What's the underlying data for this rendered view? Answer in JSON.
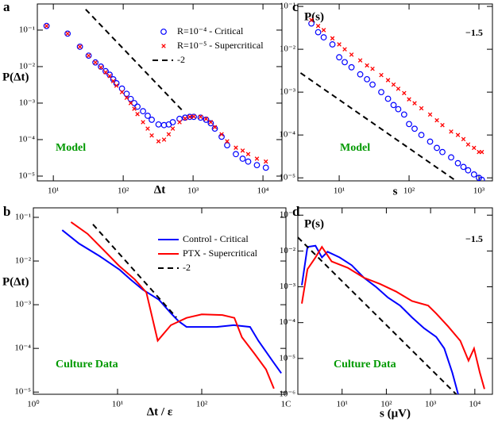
{
  "chart_data": [
    {
      "type": "scatter",
      "panel": "a",
      "xlabel": "Δt",
      "ylabel": "P(Δt)",
      "xscale": "log",
      "yscale": "log",
      "xlim": [
        5.9,
        18700
      ],
      "ylim": [
        7.4e-06,
        0.52
      ],
      "xticks": [
        {
          "value": 10,
          "label": "10¹"
        },
        {
          "value": 100,
          "label": "10²"
        },
        {
          "value": 1000,
          "label": "10³"
        },
        {
          "value": 10000,
          "label": "10⁴"
        }
      ],
      "yticks": [
        {
          "value": 1e-05,
          "label": "10⁻⁵"
        },
        {
          "value": 0.0001,
          "label": "10⁻⁴"
        },
        {
          "value": 0.001,
          "label": "10⁻³"
        },
        {
          "value": 0.01,
          "label": "10⁻²"
        },
        {
          "value": 0.1,
          "label": "10⁻¹"
        }
      ],
      "legend": "upper right",
      "annotations": [
        "Model"
      ],
      "series": [
        {
          "name": "R=10⁻⁴ - Critical",
          "color": "#0000ff",
          "style": "circle",
          "x": [
            8,
            16,
            24,
            32,
            40,
            48,
            56,
            64,
            72,
            80,
            96,
            112,
            128,
            144,
            160,
            192,
            224,
            256,
            320,
            384,
            448,
            512,
            640,
            768,
            896,
            1024,
            1280,
            1536,
            1792,
            2048,
            2560,
            3072,
            4096,
            5120,
            6144,
            8192,
            11000
          ],
          "values": [
            0.13,
            0.08,
            0.035,
            0.02,
            0.013,
            0.01,
            0.0075,
            0.006,
            0.0045,
            0.0035,
            0.0025,
            0.0018,
            0.0013,
            0.001,
            0.0008,
            0.0006,
            0.00045,
            0.00035,
            0.00026,
            0.00025,
            0.00026,
            0.0003,
            0.00037,
            0.0004,
            0.00042,
            0.00042,
            0.0004,
            0.00035,
            0.00028,
            0.0002,
            0.00012,
            7e-05,
            4e-05,
            3e-05,
            2.5e-05,
            2e-05,
            1.7e-05
          ]
        },
        {
          "name": "R=10⁻⁵ - Supercritical",
          "color": "#ff0000",
          "style": "cross",
          "x": [
            8,
            16,
            24,
            32,
            40,
            48,
            56,
            64,
            72,
            80,
            96,
            112,
            128,
            144,
            160,
            192,
            224,
            256,
            320,
            384,
            448,
            512,
            640,
            768,
            896,
            1024,
            1280,
            1536,
            1792,
            2048,
            2560,
            3072,
            4096,
            5120,
            6144,
            8192,
            11000
          ],
          "values": [
            0.13,
            0.08,
            0.035,
            0.02,
            0.013,
            0.0095,
            0.007,
            0.0055,
            0.004,
            0.003,
            0.002,
            0.0014,
            0.001,
            0.0007,
            0.0005,
            0.0003,
            0.0002,
            0.00013,
            9e-05,
            0.0001,
            0.00014,
            0.0002,
            0.0003,
            0.00038,
            0.00042,
            0.00043,
            0.00042,
            0.00037,
            0.0003,
            0.00022,
            0.00014,
            9e-05,
            6e-05,
            5e-05,
            4e-05,
            3e-05,
            2.5e-05
          ]
        },
        {
          "name": "-2",
          "color": "#000000",
          "style": "dashed",
          "x": [
            29,
            750
          ],
          "values": [
            0.37,
            0.00055
          ]
        }
      ]
    },
    {
      "type": "line",
      "panel": "b",
      "xlabel": "Δt / ε",
      "ylabel": "P(Δt)",
      "xscale": "log",
      "yscale": "log",
      "xlim": [
        1,
        1000
      ],
      "ylim": [
        8.9e-06,
        0.165
      ],
      "xticks": [
        {
          "value": 1,
          "label": "10⁰"
        },
        {
          "value": 10,
          "label": "10¹"
        },
        {
          "value": 100,
          "label": "10²"
        },
        {
          "value": 1000,
          "label": "1C"
        }
      ],
      "yticks": [
        {
          "value": 1e-05,
          "label": "10⁻⁵"
        },
        {
          "value": 0.0001,
          "label": "10⁻⁴"
        },
        {
          "value": 0.001,
          "label": "10⁻³"
        },
        {
          "value": 0.01,
          "label": "10⁻²"
        },
        {
          "value": 0.1,
          "label": "10⁻¹"
        }
      ],
      "legend": "upper right",
      "annotations": [
        "Culture Data"
      ],
      "series": [
        {
          "name": "Control - Critical",
          "color": "#0000ff",
          "style": "line",
          "x": [
            2.2,
            3.5,
            6.1,
            10.6,
            14.2,
            20,
            31,
            43,
            53,
            66,
            92,
            150,
            240,
            375,
            470,
            700,
            880
          ],
          "values": [
            0.051,
            0.025,
            0.013,
            0.0063,
            0.0038,
            0.0022,
            0.0013,
            0.00064,
            0.00042,
            0.00031,
            0.00031,
            0.00031,
            0.00034,
            0.00031,
            0.00015,
            5e-05,
            2.7e-05
          ]
        },
        {
          "name": "PTX - Supercritical",
          "color": "#ff0000",
          "style": "line",
          "x": [
            2.8,
            4.4,
            6.8,
            10.4,
            16,
            22,
            30,
            43,
            66,
            100,
            176,
            244,
            300,
            420,
            580,
            720
          ],
          "values": [
            0.078,
            0.042,
            0.018,
            0.0078,
            0.0038,
            0.0019,
            0.00015,
            0.00034,
            0.0005,
            0.0006,
            0.00058,
            0.0005,
            0.00018,
            7.7e-05,
            3.3e-05,
            1.2e-05
          ]
        },
        {
          "name": "-2",
          "color": "#000000",
          "style": "dashed",
          "x": [
            5.1,
            50
          ],
          "values": [
            0.069,
            0.00051
          ]
        }
      ]
    },
    {
      "type": "scatter",
      "panel": "c",
      "xlabel": "s",
      "ylabel": "P(s)",
      "xscale": "log",
      "yscale": "log",
      "xlim": [
        2.56,
        1560
      ],
      "ylim": [
        8.5e-06,
        0.114
      ],
      "xticks": [
        {
          "value": 10,
          "label": "10¹"
        },
        {
          "value": 100,
          "label": "10²"
        },
        {
          "value": 1000,
          "label": "10³"
        }
      ],
      "yticks": [
        {
          "value": 1e-05,
          "label": "10⁻⁵"
        },
        {
          "value": 0.0001,
          "label": "10⁻⁴"
        },
        {
          "value": 0.001,
          "label": "10⁻³"
        },
        {
          "value": 0.01,
          "label": "10⁻²"
        },
        {
          "value": 0.1,
          "label": "10⁻¹"
        }
      ],
      "annotations": [
        "Model",
        "−1.5"
      ],
      "series": [
        {
          "color": "#0000ff",
          "style": "circle",
          "x": [
            4,
            5,
            6,
            8,
            10,
            12,
            15,
            20,
            25,
            30,
            40,
            50,
            60,
            70,
            85,
            100,
            120,
            150,
            200,
            250,
            300,
            400,
            500,
            600,
            700,
            850,
            1000,
            1100
          ],
          "values": [
            0.04,
            0.025,
            0.019,
            0.013,
            0.0065,
            0.005,
            0.0038,
            0.0026,
            0.002,
            0.0015,
            0.001,
            0.0007,
            0.0005,
            0.0004,
            0.0003,
            0.00018,
            0.00014,
            0.0001,
            7e-05,
            5e-05,
            4e-05,
            3e-05,
            2.2e-05,
            1.8e-05,
            1.5e-05,
            1.2e-05,
            1e-05,
            9e-06
          ]
        },
        {
          "color": "#ff0000",
          "style": "cross",
          "x": [
            4,
            5,
            6,
            8,
            10,
            12,
            15,
            20,
            25,
            30,
            40,
            50,
            60,
            70,
            85,
            100,
            120,
            150,
            200,
            250,
            300,
            400,
            500,
            600,
            700,
            850,
            1000,
            1100
          ],
          "values": [
            0.048,
            0.035,
            0.028,
            0.018,
            0.013,
            0.01,
            0.0075,
            0.0055,
            0.0042,
            0.0035,
            0.0025,
            0.0019,
            0.0015,
            0.0012,
            0.00095,
            0.00068,
            0.00055,
            0.00042,
            0.0003,
            0.00022,
            0.00017,
            0.00012,
            0.0001,
            8e-05,
            6e-05,
            5e-05,
            4e-05,
            4e-05
          ]
        },
        {
          "color": "#000000",
          "style": "dashed",
          "x": [
            2.8,
            470
          ],
          "values": [
            0.0028,
            8.5e-06
          ]
        }
      ]
    },
    {
      "type": "line",
      "panel": "d",
      "xlabel": "s (μV)",
      "ylabel": "P(s)",
      "xscale": "log",
      "yscale": "log",
      "xlim": [
        1,
        25000
      ],
      "ylim": [
        1e-06,
        0.16
      ],
      "xticks": [
        {
          "value": 10,
          "label": "10¹"
        },
        {
          "value": 100,
          "label": "10²"
        },
        {
          "value": 1000,
          "label": "10³"
        },
        {
          "value": 10000,
          "label": "10⁴"
        }
      ],
      "yticks": [
        {
          "value": 1e-06,
          "label": "10⁻⁶"
        },
        {
          "value": 1e-05,
          "label": "10⁻⁵"
        },
        {
          "value": 0.0001,
          "label": "10⁻⁴"
        },
        {
          "value": 0.001,
          "label": "10⁻³"
        },
        {
          "value": 0.01,
          "label": "10⁻²"
        },
        {
          "value": 0.1,
          "label": "10⁻¹"
        }
      ],
      "annotations": [
        "Culture Data",
        "−1.5"
      ],
      "series": [
        {
          "color": "#0000ff",
          "style": "line",
          "x": [
            1.23,
            1.65,
            2.5,
            3.5,
            4.7,
            8.8,
            16.5,
            31,
            58,
            109,
            204,
            380,
            710,
            1340,
            2040,
            3100,
            4200
          ],
          "values": [
            0.0011,
            0.013,
            0.014,
            0.0066,
            0.0095,
            0.0066,
            0.004,
            0.0018,
            0.001,
            0.0005,
            0.0003,
            0.00014,
            7e-05,
            4e-05,
            1.9e-05,
            4e-06,
            1e-06
          ]
        },
        {
          "color": "#ff0000",
          "style": "line",
          "x": [
            1.23,
            1.65,
            2.5,
            3.5,
            5.8,
            13.4,
            31,
            72,
            165,
            380,
            880,
            1340,
            2500,
            4700,
            7200,
            9600,
            13000,
            16500
          ],
          "values": [
            0.00034,
            0.0031,
            0.0066,
            0.013,
            0.0051,
            0.0034,
            0.0018,
            0.0012,
            0.00074,
            0.0004,
            0.0003,
            0.00018,
            7.8e-05,
            3.1e-05,
            8.7e-06,
            1.9e-05,
            4e-06,
            1.4e-06
          ]
        },
        {
          "color": "#000000",
          "style": "dashed",
          "x": [
            1,
            3800
          ],
          "values": [
            0.024,
            1e-06
          ]
        }
      ]
    }
  ]
}
